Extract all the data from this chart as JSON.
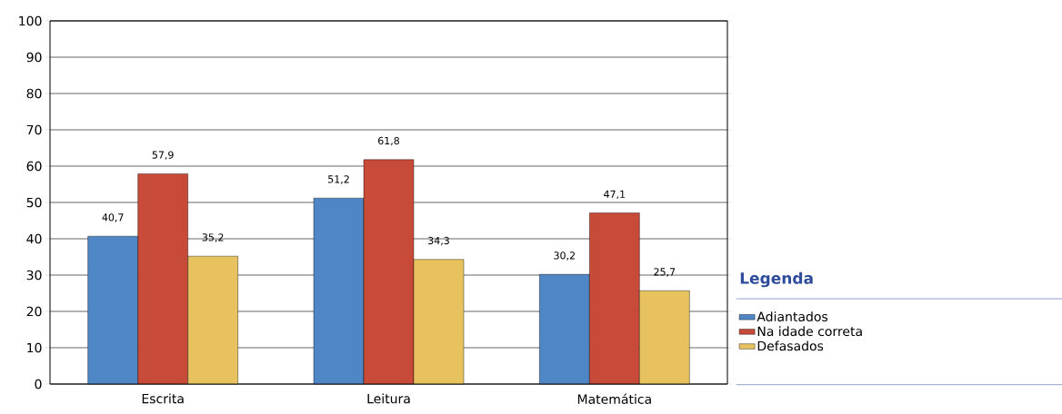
{
  "chart_data": {
    "type": "bar",
    "categories": [
      "Escrita",
      "Leitura",
      "Matemática"
    ],
    "series": [
      {
        "name": "Adiantados",
        "color": "#4f86c6",
        "values": [
          40.7,
          51.2,
          30.2
        ],
        "value_labels": [
          "40,7",
          "51,2",
          "30,2"
        ]
      },
      {
        "name": "Na idade correta",
        "color": "#c84a38",
        "values": [
          57.9,
          61.8,
          47.1
        ],
        "value_labels": [
          "57,9",
          "61,8",
          "47,1"
        ]
      },
      {
        "name": "Defasados",
        "color": "#e8c25f",
        "values": [
          35.2,
          34.3,
          25.7
        ],
        "value_labels": [
          "35,2",
          "34,3",
          "25,7"
        ]
      }
    ],
    "legend_title": "Legenda",
    "legend": "right",
    "ylim": [
      0,
      100
    ],
    "yticks": [
      0,
      10,
      20,
      30,
      40,
      50,
      60,
      70,
      80,
      90,
      100
    ],
    "grid": "y"
  }
}
